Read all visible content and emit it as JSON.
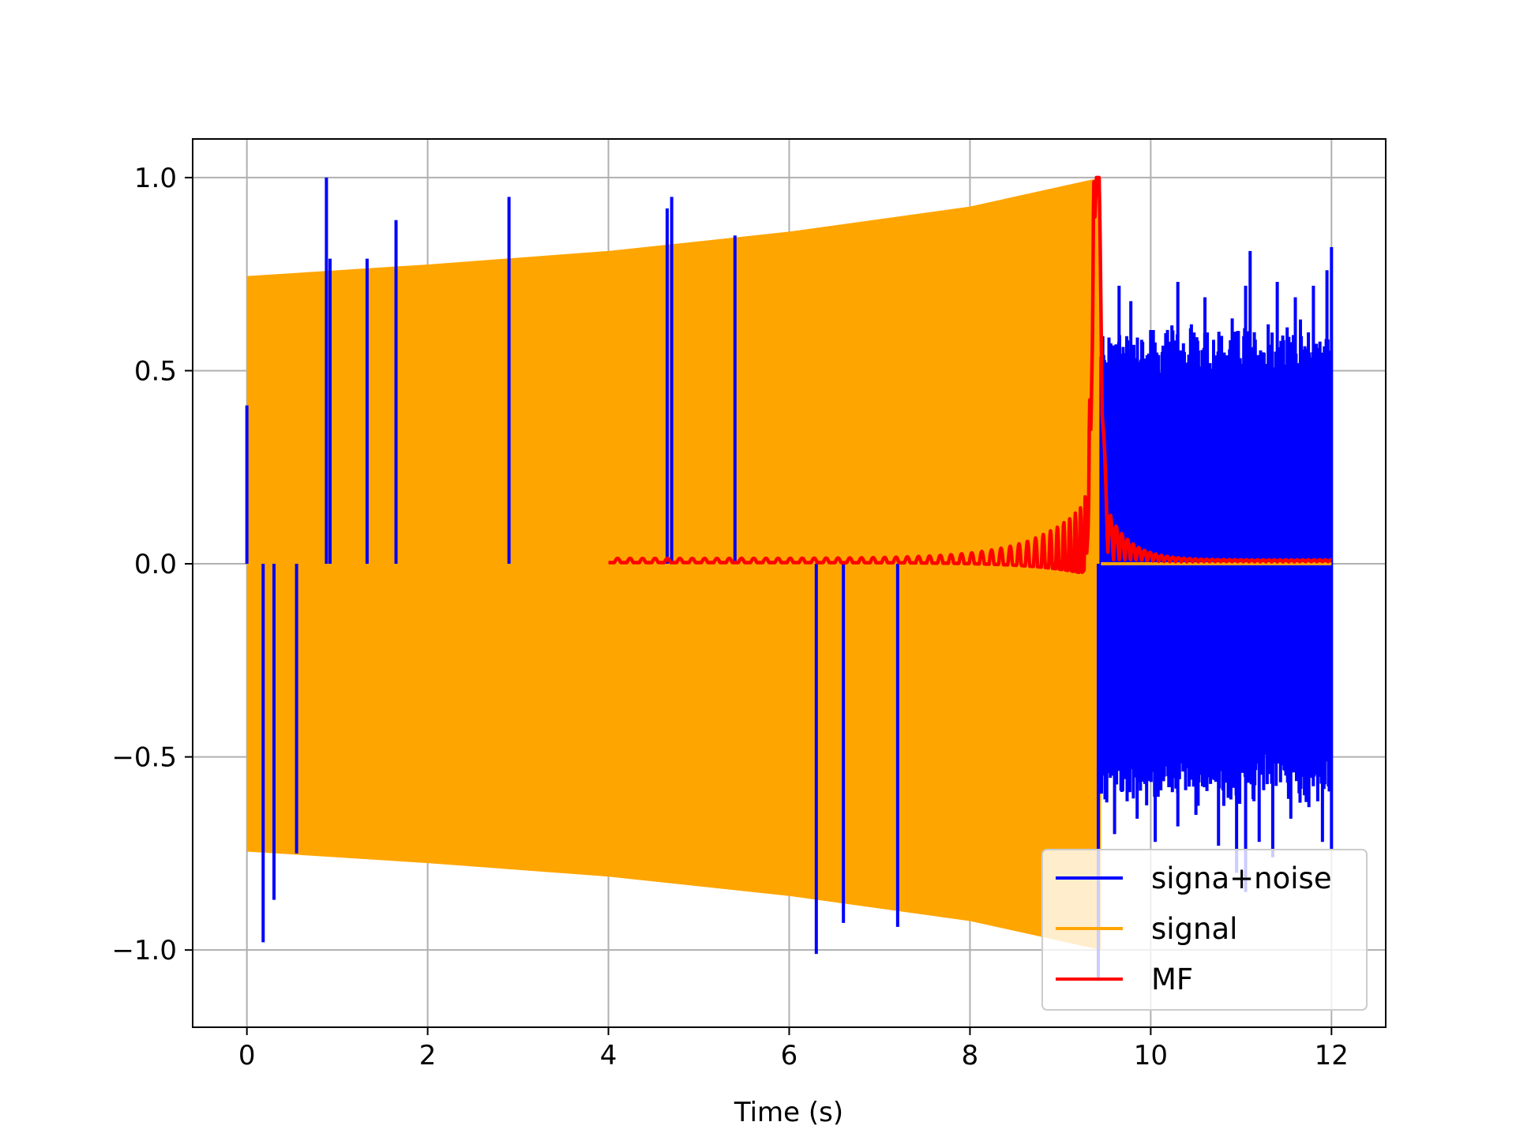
{
  "chart_data": {
    "type": "line",
    "title": "",
    "xlabel": "Time (s)",
    "ylabel": "",
    "xlim": [
      -0.6,
      12.6
    ],
    "ylim": [
      -1.2,
      1.1
    ],
    "grid": true,
    "legend_position": "lower-right",
    "x_ticks": [
      0,
      2,
      4,
      6,
      8,
      10,
      12
    ],
    "x_tick_labels": [
      "0",
      "2",
      "4",
      "6",
      "8",
      "10",
      "12"
    ],
    "y_ticks": [
      1.0,
      0.5,
      0.0,
      -0.5,
      -1.0
    ],
    "y_tick_labels": [
      "1.0",
      "0.5",
      "0.0",
      "−0.5",
      "−1.0"
    ],
    "series": [
      {
        "name": "signa+noise",
        "color": "#0000ff",
        "description_values": {
          "x_range": [
            0,
            12
          ],
          "spikes": [
            [
              0.0,
              0.41
            ],
            [
              0.18,
              -0.98
            ],
            [
              0.3,
              -0.87
            ],
            [
              0.55,
              -0.75
            ],
            [
              0.88,
              1.0
            ],
            [
              0.92,
              0.79
            ],
            [
              1.33,
              0.79
            ],
            [
              1.65,
              0.89
            ],
            [
              2.9,
              0.95
            ],
            [
              4.65,
              0.92
            ],
            [
              4.7,
              0.95
            ],
            [
              5.4,
              0.85
            ],
            [
              6.3,
              -1.01
            ],
            [
              6.6,
              -0.93
            ],
            [
              7.2,
              -0.94
            ],
            [
              9.42,
              -1.08
            ]
          ],
          "noise_region": {
            "x": [
              9.45,
              12.0
            ],
            "peaks": [
              [
                9.55,
                0.5
              ],
              [
                9.65,
                0.72
              ],
              [
                9.78,
                0.68
              ],
              [
                9.9,
                0.58
              ],
              [
                10.3,
                0.73
              ],
              [
                10.45,
                0.62
              ],
              [
                10.6,
                0.69
              ],
              [
                10.9,
                0.58
              ],
              [
                11.05,
                0.72
              ],
              [
                11.1,
                0.81
              ],
              [
                11.3,
                0.62
              ],
              [
                11.4,
                0.73
              ],
              [
                11.6,
                0.69
              ],
              [
                11.8,
                0.72
              ],
              [
                11.95,
                0.76
              ],
              [
                12.0,
                0.82
              ]
            ],
            "troughs": [
              [
                9.5,
                -0.57
              ],
              [
                9.6,
                -0.7
              ],
              [
                9.85,
                -0.66
              ],
              [
                10.05,
                -0.72
              ],
              [
                10.3,
                -0.68
              ],
              [
                10.5,
                -0.65
              ],
              [
                10.75,
                -0.73
              ],
              [
                10.95,
                -0.8
              ],
              [
                11.05,
                -0.85
              ],
              [
                11.2,
                -0.72
              ],
              [
                11.35,
                -0.76
              ],
              [
                11.55,
                -0.66
              ],
              [
                11.75,
                -0.63
              ],
              [
                11.9,
                -0.72
              ],
              [
                12.0,
                -0.74
              ]
            ]
          }
        }
      },
      {
        "name": "signal",
        "color": "#ffa500",
        "description_values": {
          "x_range": [
            0,
            9.45
          ],
          "upper_envelope": [
            [
              0,
              0.745
            ],
            [
              2,
              0.775
            ],
            [
              4,
              0.81
            ],
            [
              6,
              0.86
            ],
            [
              8,
              0.925
            ],
            [
              9.45,
              1.0
            ]
          ],
          "lower_envelope": [
            [
              0,
              -0.745
            ],
            [
              2,
              -0.775
            ],
            [
              4,
              -0.81
            ],
            [
              6,
              -0.86
            ],
            [
              8,
              -0.925
            ],
            [
              9.45,
              -1.0
            ]
          ],
          "after": [
            [
              9.45,
              0.0
            ],
            [
              12.0,
              0.0
            ]
          ]
        }
      },
      {
        "name": "MF",
        "color": "#ff0000",
        "description_values": {
          "x_range": [
            4.0,
            12.0
          ],
          "peak": [
            9.4,
            1.0
          ],
          "baseline": 0.005
        }
      }
    ]
  }
}
